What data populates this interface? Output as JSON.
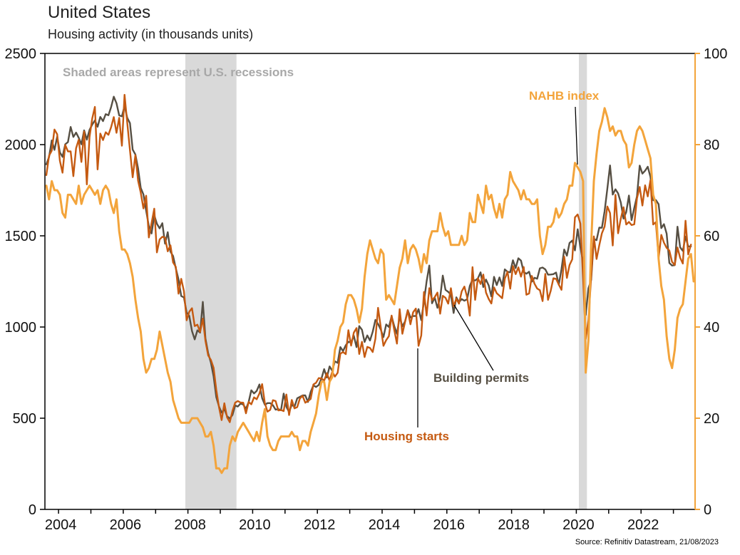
{
  "chart_data": {
    "type": "line",
    "title": "United States",
    "subtitle": "Housing activity (in thousands units)",
    "source": "Source: Refinitiv Datastream, 21/08/2023",
    "annotations": {
      "recession_note": "Shaded areas represent U.S. recessions",
      "nahb_label": "NAHB index",
      "permits_label": "Building permits",
      "starts_label": "Housing starts"
    },
    "colors": {
      "nahb": "#F3A43B",
      "starts": "#C55A11",
      "permits": "#564F43",
      "recession_band": "#D9D9D9",
      "note_gray": "#A8A8A8",
      "axis": "#000000"
    },
    "x_range": [
      2003.58,
      2023.67
    ],
    "left_axis": {
      "label": "thousands units",
      "min": 0,
      "max": 2500,
      "ticks": [
        0,
        500,
        1000,
        1500,
        2000,
        2500
      ]
    },
    "right_axis": {
      "label": "NAHB index",
      "min": 0,
      "max": 100,
      "ticks": [
        0,
        20,
        40,
        60,
        80,
        100
      ]
    },
    "x_axis": {
      "tick_years": [
        2004,
        2006,
        2008,
        2010,
        2012,
        2014,
        2016,
        2018,
        2020,
        2022
      ],
      "minor_years": [
        2004,
        2005,
        2006,
        2007,
        2008,
        2009,
        2010,
        2011,
        2012,
        2013,
        2014,
        2015,
        2016,
        2017,
        2018,
        2019,
        2020,
        2021,
        2022,
        2023
      ]
    },
    "recessions": [
      {
        "start": 2007.92,
        "end": 2009.5
      },
      {
        "start": 2020.08,
        "end": 2020.33
      }
    ],
    "series": [
      {
        "name": "Building permits",
        "axis": "left",
        "color": "#564F43",
        "monthly": {
          "2003": [
            1892,
            1932,
            2023,
            1971,
            2043
          ],
          "2004": [
            1958,
            1933,
            2002,
            2014,
            2097,
            2042,
            2066,
            2038,
            2002,
            2078,
            2027,
            2081
          ],
          "2005": [
            2110,
            2133,
            2098,
            2152,
            2129,
            2167,
            2161,
            2205,
            2263,
            2227,
            2160,
            2155
          ],
          "2006": [
            2212,
            2147,
            2118,
            1973,
            1946,
            1869,
            1763,
            1727,
            1638,
            1553,
            1513,
            1613
          ],
          "2007": [
            1566,
            1541,
            1569,
            1457,
            1520,
            1413,
            1389,
            1322,
            1261,
            1170,
            1162,
            1080
          ],
          "2008": [
            1061,
            978,
            932,
            982,
            969,
            1138,
            937,
            857,
            805,
            730,
            615,
            564
          ],
          "2009": [
            531,
            550,
            511,
            498,
            518,
            570,
            564,
            580,
            575,
            551,
            589,
            653
          ],
          "2010": [
            636,
            650,
            685,
            610,
            574,
            583,
            583,
            571,
            547,
            550,
            544,
            635
          ],
          "2011": [
            563,
            534,
            574,
            563,
            609,
            617,
            625,
            625,
            589,
            644,
            680,
            671
          ],
          "2012": [
            682,
            717,
            769,
            723,
            784,
            760,
            812,
            803,
            890,
            868,
            900,
            919
          ],
          "2013": [
            915,
            952,
            890,
            1005,
            985,
            918,
            954,
            926,
            974,
            1039,
            1017,
            986
          ],
          "2014": [
            945,
            1014,
            1000,
            1059,
            1005,
            963,
            1057,
            1003,
            1031,
            1092,
            1052,
            1060
          ],
          "2015": [
            1060,
            1098,
            1038,
            1140,
            1250,
            1337,
            1130,
            1161,
            1105,
            1161,
            1282,
            1204
          ],
          "2016": [
            1193,
            1177,
            1077,
            1163,
            1136,
            1153,
            1144,
            1152,
            1225,
            1260,
            1255,
            1266
          ],
          "2017": [
            1300,
            1219,
            1260,
            1228,
            1168,
            1275,
            1230,
            1272,
            1225,
            1316,
            1303,
            1300
          ],
          "2018": [
            1366,
            1323,
            1377,
            1364,
            1301,
            1292,
            1303,
            1249,
            1270,
            1265,
            1322,
            1326
          ],
          "2019": [
            1316,
            1287,
            1288,
            1290,
            1299,
            1232,
            1317,
            1425,
            1391,
            1461,
            1474,
            1420
          ],
          "2020": [
            1536,
            1438,
            1356,
            1066,
            1212,
            1258,
            1483,
            1476,
            1545,
            1544,
            1635,
            1758
          ],
          "2021": [
            1886,
            1726,
            1755,
            1733,
            1683,
            1594,
            1630,
            1721,
            1586,
            1653,
            1717,
            1885
          ],
          "2022": [
            1841,
            1857,
            1879,
            1823,
            1695,
            1696,
            1674,
            1542,
            1564,
            1512,
            1351,
            1337
          ],
          "2023": [
            1339,
            1550,
            1437,
            1417,
            1496,
            1441,
            1442
          ]
        }
      },
      {
        "name": "Housing starts",
        "axis": "left",
        "color": "#C55A11",
        "monthly": {
          "2003": [
            1833,
            1939,
            1967,
            2083,
            2057
          ],
          "2004": [
            1911,
            1846,
            1998,
            1963,
            1963,
            1827,
            1980,
            2027,
            1905,
            2072,
            1782,
            2042
          ],
          "2005": [
            2144,
            2207,
            1864,
            2061,
            2025,
            2068,
            2054,
            2095,
            2151,
            2065,
            2147,
            1994
          ],
          "2006": [
            2273,
            2119,
            1969,
            1821,
            1942,
            1802,
            1737,
            1650,
            1720,
            1491,
            1570,
            1649
          ],
          "2007": [
            1409,
            1480,
            1495,
            1490,
            1415,
            1448,
            1354,
            1330,
            1183,
            1264,
            1197,
            1037
          ],
          "2008": [
            1084,
            1103,
            1005,
            1013,
            973,
            1046,
            923,
            844,
            820,
            777,
            655,
            560
          ],
          "2009": [
            490,
            582,
            505,
            478,
            540,
            585,
            594,
            586,
            585,
            527,
            589,
            576
          ],
          "2010": [
            614,
            604,
            636,
            687,
            583,
            536,
            546,
            599,
            594,
            543,
            545,
            539
          ],
          "2011": [
            630,
            517,
            600,
            554,
            561,
            608,
            623,
            585,
            594,
            606,
            685,
            694
          ],
          "2012": [
            720,
            718,
            706,
            747,
            706,
            754,
            728,
            749,
            854,
            863,
            851,
            983
          ],
          "2013": [
            898,
            969,
            994,
            852,
            919,
            835,
            891,
            885,
            863,
            936,
            1105,
            999
          ],
          "2014": [
            897,
            928,
            950,
            1063,
            984,
            909,
            1098,
            963,
            1028,
            1092,
            1015,
            1081
          ],
          "2015": [
            1101,
            897,
            954,
            1192,
            1063,
            1213,
            1147,
            1164,
            1189,
            1073,
            1171,
            1160
          ],
          "2016": [
            1128,
            1213,
            1113,
            1155,
            1128,
            1195,
            1222,
            1164,
            1062,
            1328,
            1149,
            1268
          ],
          "2017": [
            1236,
            1288,
            1189,
            1154,
            1129,
            1217,
            1185,
            1172,
            1158,
            1265,
            1303,
            1210
          ],
          "2018": [
            1334,
            1290,
            1327,
            1276,
            1329,
            1177,
            1184,
            1280,
            1237,
            1211,
            1202,
            1142
          ],
          "2019": [
            1291,
            1149,
            1199,
            1267,
            1264,
            1233,
            1204,
            1386,
            1269,
            1340,
            1371,
            1601
          ],
          "2020": [
            1617,
            1567,
            1269,
            934,
            1038,
            1273,
            1497,
            1373,
            1448,
            1514,
            1551,
            1661
          ],
          "2021": [
            1625,
            1447,
            1725,
            1514,
            1594,
            1657,
            1562,
            1576,
            1559,
            1563,
            1706,
            1768
          ],
          "2022": [
            1666,
            1777,
            1716,
            1805,
            1562,
            1575,
            1377,
            1505,
            1463,
            1434,
            1419,
            1357
          ],
          "2023": [
            1340,
            1436,
            1380,
            1348,
            1583,
            1398,
            1452
          ]
        }
      },
      {
        "name": "NAHB index",
        "axis": "right",
        "color": "#F3A43B",
        "monthly": {
          "2003": [
            71,
            68,
            72,
            70,
            70
          ],
          "2004": [
            69,
            65,
            64,
            69,
            69,
            68,
            67,
            71,
            67,
            69,
            70,
            71
          ],
          "2005": [
            70,
            69,
            70,
            67,
            70,
            71,
            70,
            67,
            65,
            68,
            61,
            57
          ],
          "2006": [
            57,
            56,
            54,
            51,
            46,
            42,
            39,
            33,
            30,
            31,
            33,
            33
          ],
          "2007": [
            35,
            39,
            36,
            33,
            30,
            28,
            24,
            22,
            20,
            19,
            19,
            19
          ],
          "2008": [
            19,
            20,
            20,
            20,
            19,
            18,
            16,
            16,
            17,
            14,
            9,
            9
          ],
          "2009": [
            8,
            9,
            9,
            14,
            16,
            15,
            17,
            18,
            19,
            18,
            17,
            16
          ],
          "2010": [
            15,
            17,
            15,
            19,
            22,
            16,
            14,
            13,
            13,
            15,
            16,
            16
          ],
          "2011": [
            16,
            16,
            17,
            16,
            16,
            13,
            15,
            15,
            14,
            17,
            19,
            21
          ],
          "2012": [
            25,
            28,
            28,
            24,
            28,
            29,
            35,
            37,
            40,
            41,
            45,
            47
          ],
          "2013": [
            47,
            46,
            44,
            41,
            44,
            51,
            56,
            59,
            57,
            55,
            54,
            57
          ],
          "2014": [
            56,
            46,
            47,
            46,
            45,
            49,
            53,
            55,
            59,
            54,
            57,
            58
          ],
          "2015": [
            57,
            55,
            52,
            56,
            54,
            59,
            61,
            61,
            61,
            65,
            62,
            60
          ],
          "2016": [
            61,
            58,
            58,
            58,
            58,
            60,
            58,
            59,
            65,
            63,
            63,
            69
          ],
          "2017": [
            67,
            65,
            71,
            68,
            69,
            66,
            64,
            67,
            64,
            68,
            69,
            74
          ],
          "2018": [
            72,
            71,
            70,
            68,
            70,
            68,
            68,
            67,
            67,
            68,
            60,
            56
          ],
          "2019": [
            58,
            62,
            62,
            63,
            66,
            64,
            65,
            67,
            68,
            71,
            71,
            76
          ],
          "2020": [
            75,
            74,
            72,
            30,
            37,
            58,
            72,
            78,
            83,
            85,
            88,
            86
          ],
          "2021": [
            83,
            84,
            82,
            83,
            83,
            81,
            80,
            75,
            76,
            80,
            83,
            84
          ],
          "2022": [
            83,
            81,
            79,
            77,
            69,
            67,
            55,
            49,
            46,
            38,
            33,
            31
          ],
          "2023": [
            35,
            42,
            44,
            45,
            50,
            55,
            56,
            50
          ]
        }
      }
    ]
  }
}
